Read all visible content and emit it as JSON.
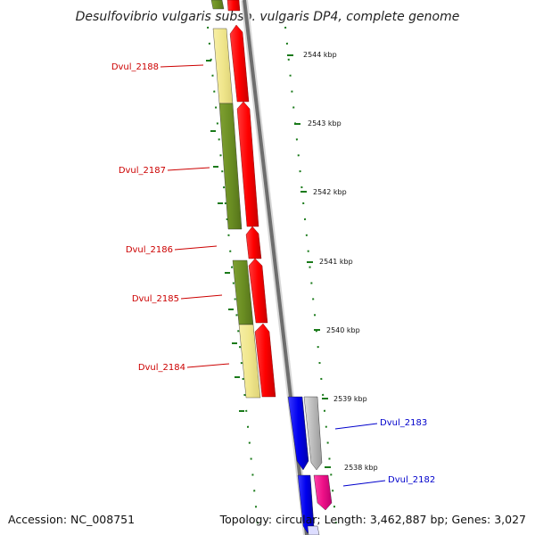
{
  "title": "Desulfovibrio vulgaris subsp. vulgaris DP4, complete genome",
  "footer": {
    "accession": "Accession: NC_008751",
    "summary": "Topology: circular; Length: 3,462,887 bp; Genes: 3,027"
  },
  "ticks": [
    "2544 kbp",
    "2543 kbp",
    "2542 kbp",
    "2541 kbp",
    "2540 kbp",
    "2539 kbp",
    "2538 kbp"
  ],
  "genes": [
    {
      "name": "Dvul_2188",
      "strand": "forward"
    },
    {
      "name": "Dvul_2187",
      "strand": "forward"
    },
    {
      "name": "Dvul_2186",
      "strand": "forward"
    },
    {
      "name": "Dvul_2185",
      "strand": "forward"
    },
    {
      "name": "Dvul_2184",
      "strand": "forward"
    },
    {
      "name": "Dvul_2183",
      "strand": "reverse"
    },
    {
      "name": "Dvul_2182",
      "strand": "reverse"
    }
  ],
  "colors": {
    "forward_cds": "#ff0000",
    "reverse_cds": "#0000ee",
    "pink_cds": "#ee1188",
    "gray_cds": "#bbbbbb",
    "olive": "#6b8e23",
    "khaki": "#f0e68c",
    "tick": "#1a7a1a",
    "backbone": "#888888",
    "forward_label": "#cc0000",
    "reverse_label": "#0000cc"
  }
}
